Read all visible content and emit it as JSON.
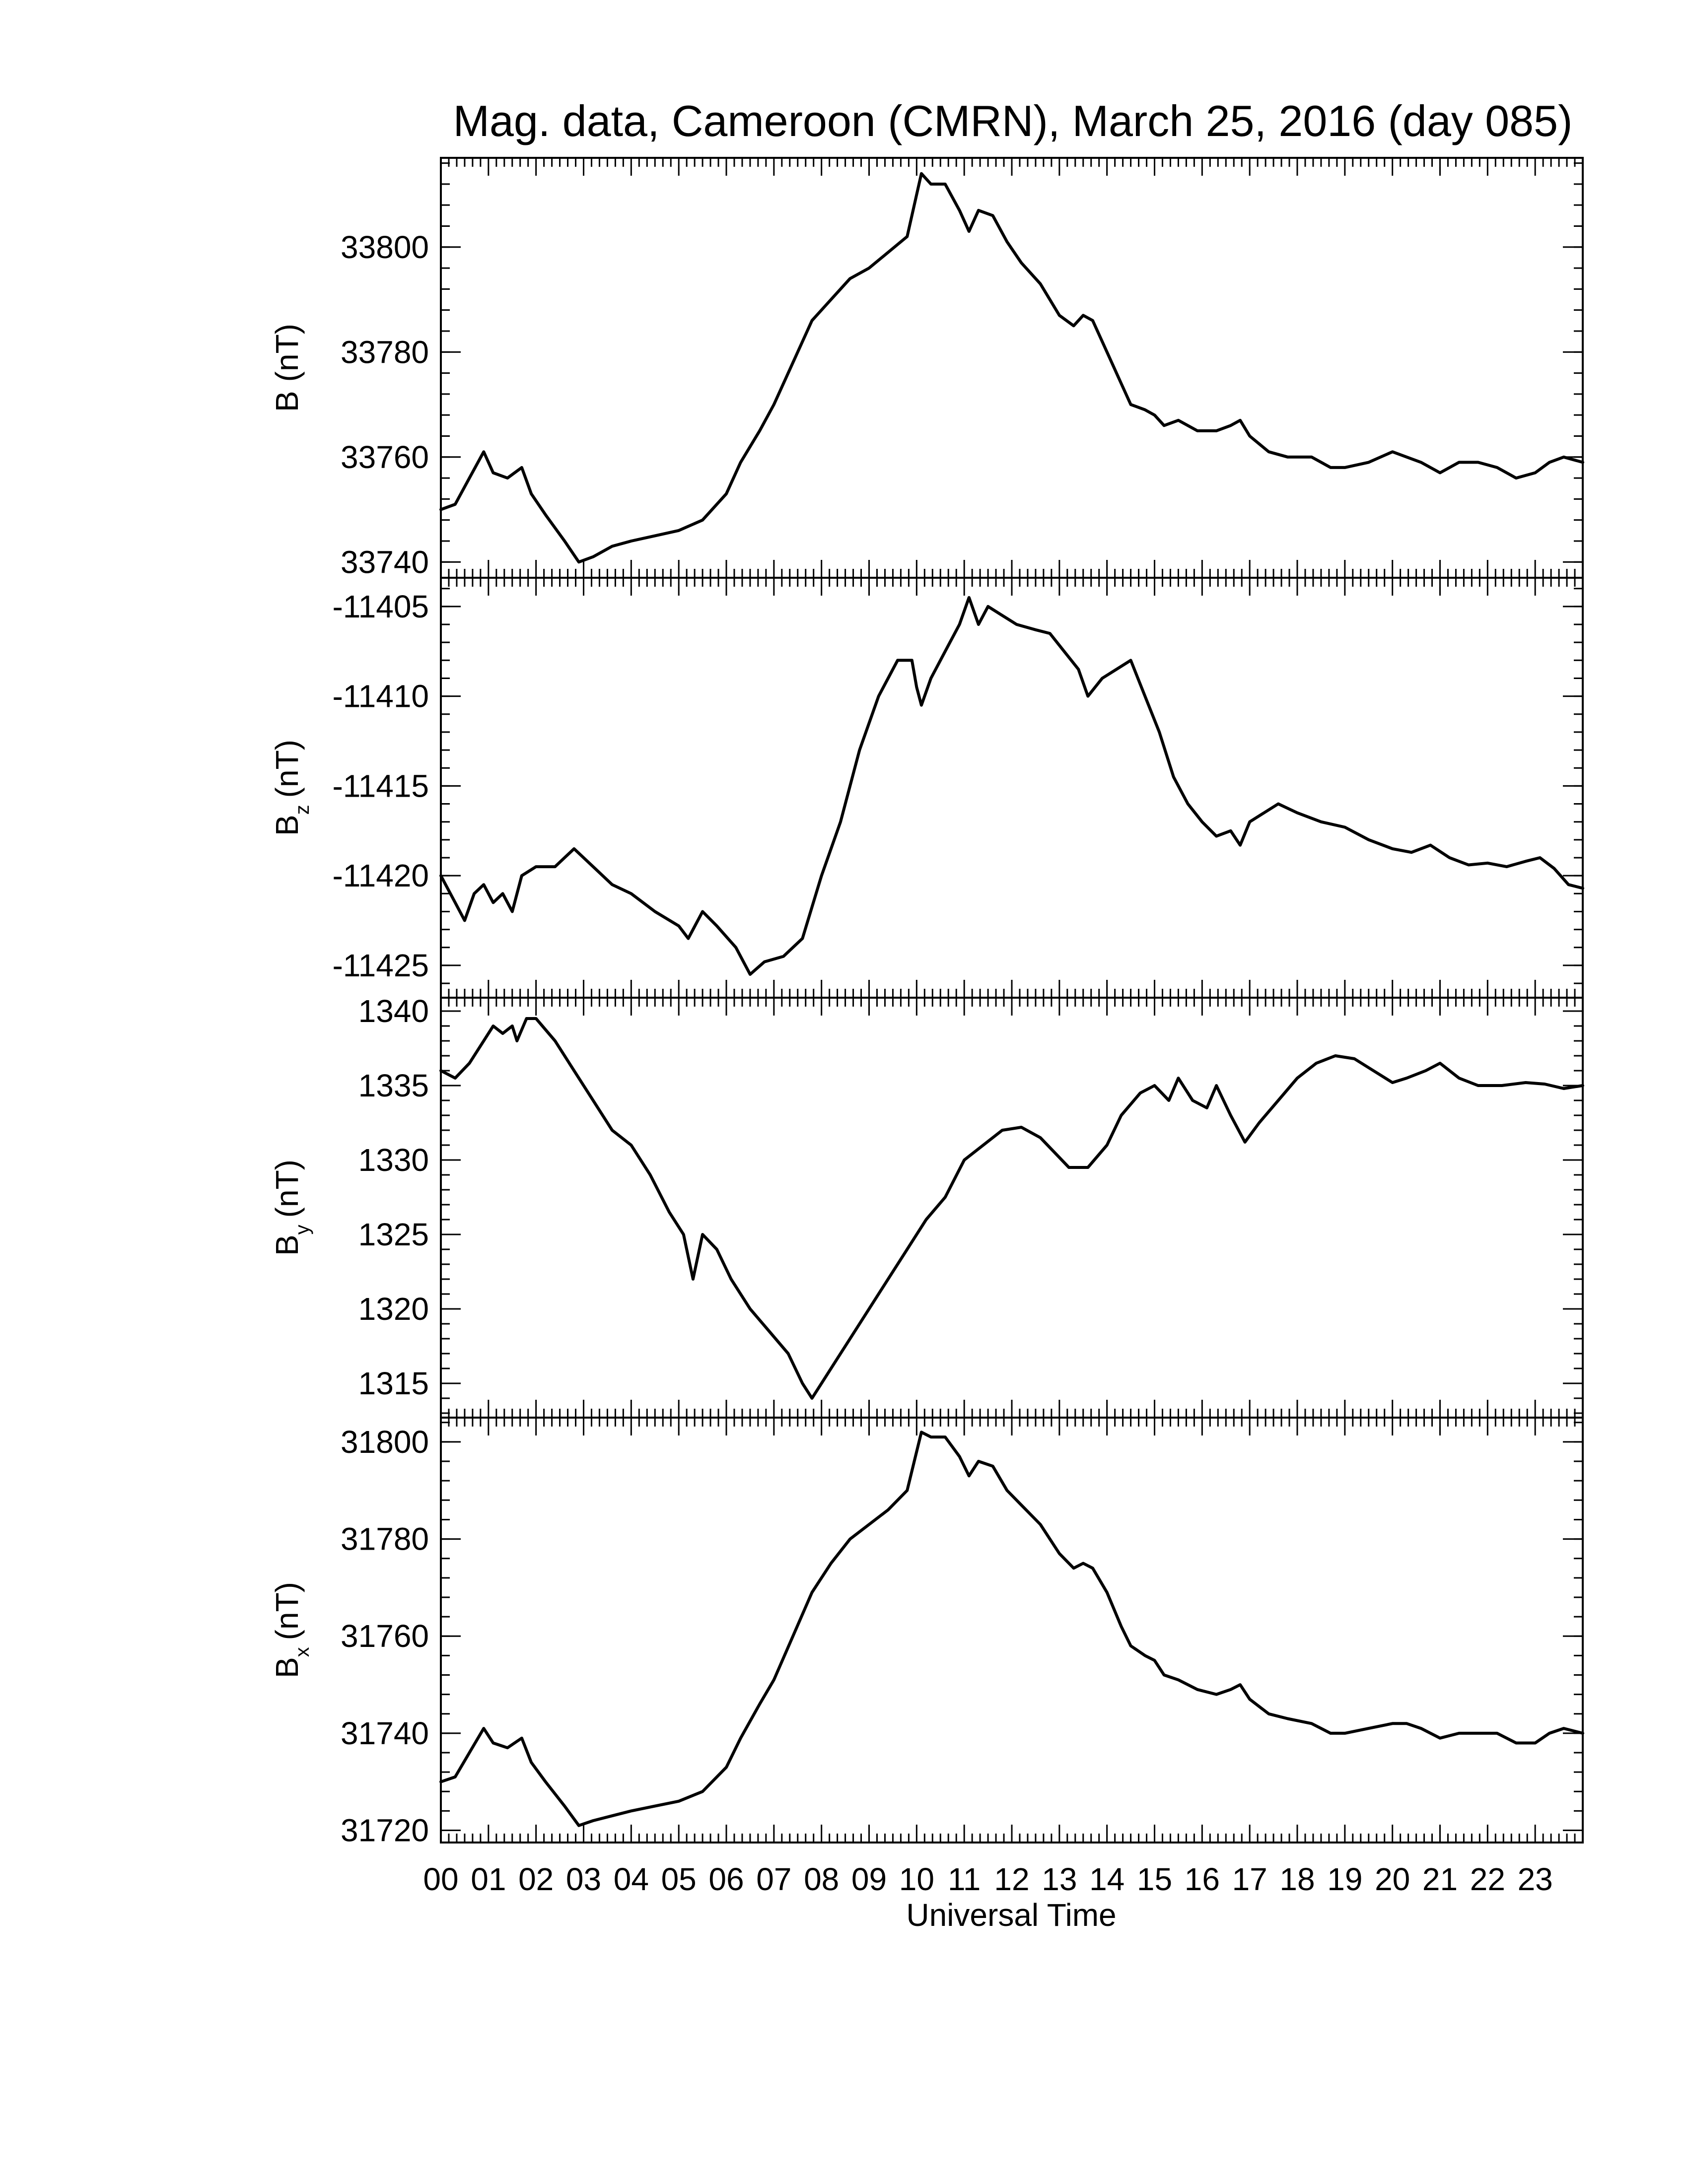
{
  "title": "Mag. data, Cameroon (CMRN), March 25, 2016 (day 085)",
  "chart_data": {
    "type": "line",
    "title": "Mag. data, Cameroon (CMRN), March 25, 2016 (day 085)",
    "xlabel": "Universal Time",
    "x_tick_labels": [
      "00",
      "01",
      "02",
      "03",
      "04",
      "05",
      "06",
      "07",
      "08",
      "09",
      "10",
      "11",
      "12",
      "13",
      "14",
      "15",
      "16",
      "17",
      "18",
      "19",
      "20",
      "21",
      "22",
      "23"
    ],
    "xlim": [
      0,
      24
    ],
    "panels": [
      {
        "ylabel": "B (nT)",
        "ylabel_main": "B",
        "ylabel_sub": "",
        "ylabel_unit": "(nT)",
        "ylim": [
          33737,
          33817
        ],
        "yticks": [
          33740,
          33760,
          33780,
          33800
        ],
        "points": [
          [
            0,
            33750
          ],
          [
            0.3,
            33751
          ],
          [
            0.6,
            33756
          ],
          [
            0.9,
            33761
          ],
          [
            1.1,
            33757
          ],
          [
            1.4,
            33756
          ],
          [
            1.7,
            33758
          ],
          [
            1.9,
            33753
          ],
          [
            2.2,
            33749
          ],
          [
            2.6,
            33744
          ],
          [
            2.9,
            33740
          ],
          [
            3.2,
            33741
          ],
          [
            3.6,
            33743
          ],
          [
            4.0,
            33744
          ],
          [
            4.5,
            33745
          ],
          [
            5.0,
            33746
          ],
          [
            5.5,
            33748
          ],
          [
            6.0,
            33753
          ],
          [
            6.3,
            33759
          ],
          [
            6.7,
            33765
          ],
          [
            7.0,
            33770
          ],
          [
            7.4,
            33778
          ],
          [
            7.8,
            33786
          ],
          [
            8.2,
            33790
          ],
          [
            8.6,
            33794
          ],
          [
            9.0,
            33796
          ],
          [
            9.4,
            33799
          ],
          [
            9.8,
            33802
          ],
          [
            10.0,
            33810
          ],
          [
            10.1,
            33814
          ],
          [
            10.3,
            33812
          ],
          [
            10.6,
            33812
          ],
          [
            10.9,
            33807
          ],
          [
            11.1,
            33803
          ],
          [
            11.3,
            33807
          ],
          [
            11.6,
            33806
          ],
          [
            11.9,
            33801
          ],
          [
            12.2,
            33797
          ],
          [
            12.6,
            33793
          ],
          [
            13.0,
            33787
          ],
          [
            13.3,
            33785
          ],
          [
            13.5,
            33787
          ],
          [
            13.7,
            33786
          ],
          [
            14.0,
            33780
          ],
          [
            14.3,
            33774
          ],
          [
            14.5,
            33770
          ],
          [
            14.8,
            33769
          ],
          [
            15.0,
            33768
          ],
          [
            15.2,
            33766
          ],
          [
            15.5,
            33767
          ],
          [
            15.9,
            33765
          ],
          [
            16.3,
            33765
          ],
          [
            16.6,
            33766
          ],
          [
            16.8,
            33767
          ],
          [
            17.0,
            33764
          ],
          [
            17.4,
            33761
          ],
          [
            17.8,
            33760
          ],
          [
            18.3,
            33760
          ],
          [
            18.7,
            33758
          ],
          [
            19.0,
            33758
          ],
          [
            19.5,
            33759
          ],
          [
            20.0,
            33761
          ],
          [
            20.3,
            33760
          ],
          [
            20.6,
            33759
          ],
          [
            21.0,
            33757
          ],
          [
            21.4,
            33759
          ],
          [
            21.8,
            33759
          ],
          [
            22.2,
            33758
          ],
          [
            22.6,
            33756
          ],
          [
            23.0,
            33757
          ],
          [
            23.3,
            33759
          ],
          [
            23.6,
            33760
          ],
          [
            24.0,
            33759
          ]
        ]
      },
      {
        "ylabel": "Bz (nT)",
        "ylabel_main": "B",
        "ylabel_sub": "z",
        "ylabel_unit": "(nT)",
        "ylim": [
          -11426.8,
          -11403.4
        ],
        "yticks": [
          -11425,
          -11420,
          -11415,
          -11410,
          -11405
        ],
        "points": [
          [
            0,
            -11420
          ],
          [
            0.3,
            -11421.5
          ],
          [
            0.5,
            -11422.5
          ],
          [
            0.7,
            -11421
          ],
          [
            0.9,
            -11420.5
          ],
          [
            1.1,
            -11421.5
          ],
          [
            1.3,
            -11421
          ],
          [
            1.5,
            -11422
          ],
          [
            1.7,
            -11420
          ],
          [
            2.0,
            -11419.5
          ],
          [
            2.4,
            -11419.5
          ],
          [
            2.8,
            -11418.5
          ],
          [
            3.2,
            -11419.5
          ],
          [
            3.6,
            -11420.5
          ],
          [
            4.0,
            -11421
          ],
          [
            4.5,
            -11422
          ],
          [
            5.0,
            -11422.8
          ],
          [
            5.2,
            -11423.5
          ],
          [
            5.5,
            -11422
          ],
          [
            5.8,
            -11422.8
          ],
          [
            6.2,
            -11424
          ],
          [
            6.5,
            -11425.5
          ],
          [
            6.8,
            -11424.8
          ],
          [
            7.2,
            -11424.5
          ],
          [
            7.6,
            -11423.5
          ],
          [
            8.0,
            -11420
          ],
          [
            8.4,
            -11417
          ],
          [
            8.8,
            -11413
          ],
          [
            9.2,
            -11410
          ],
          [
            9.6,
            -11408
          ],
          [
            9.9,
            -11408
          ],
          [
            10.0,
            -11409.5
          ],
          [
            10.1,
            -11410.5
          ],
          [
            10.3,
            -11409
          ],
          [
            10.6,
            -11407.5
          ],
          [
            10.9,
            -11406
          ],
          [
            11.1,
            -11404.5
          ],
          [
            11.3,
            -11406
          ],
          [
            11.5,
            -11405
          ],
          [
            11.8,
            -11405.5
          ],
          [
            12.1,
            -11406
          ],
          [
            12.5,
            -11406.3
          ],
          [
            12.8,
            -11406.5
          ],
          [
            13.1,
            -11407.5
          ],
          [
            13.4,
            -11408.5
          ],
          [
            13.6,
            -11410
          ],
          [
            13.9,
            -11409
          ],
          [
            14.2,
            -11408.5
          ],
          [
            14.5,
            -11408
          ],
          [
            14.8,
            -11410
          ],
          [
            15.1,
            -11412
          ],
          [
            15.4,
            -11414.5
          ],
          [
            15.7,
            -11416
          ],
          [
            16.0,
            -11417
          ],
          [
            16.3,
            -11417.8
          ],
          [
            16.6,
            -11417.5
          ],
          [
            16.8,
            -11418.3
          ],
          [
            17.0,
            -11417
          ],
          [
            17.3,
            -11416.5
          ],
          [
            17.6,
            -11416
          ],
          [
            18.0,
            -11416.5
          ],
          [
            18.5,
            -11417
          ],
          [
            19.0,
            -11417.3
          ],
          [
            19.5,
            -11418
          ],
          [
            20.0,
            -11418.5
          ],
          [
            20.4,
            -11418.7
          ],
          [
            20.8,
            -11418.3
          ],
          [
            21.2,
            -11419
          ],
          [
            21.6,
            -11419.4
          ],
          [
            22.0,
            -11419.3
          ],
          [
            22.4,
            -11419.5
          ],
          [
            22.8,
            -11419.2
          ],
          [
            23.1,
            -11419
          ],
          [
            23.4,
            -11419.6
          ],
          [
            23.7,
            -11420.5
          ],
          [
            24.0,
            -11420.7
          ]
        ]
      },
      {
        "ylabel": "By (nT)",
        "ylabel_main": "B",
        "ylabel_sub": "y",
        "ylabel_unit": "(nT)",
        "ylim": [
          1312.7,
          1340.9
        ],
        "yticks": [
          1315,
          1320,
          1325,
          1330,
          1335,
          1340
        ],
        "points": [
          [
            0,
            1336
          ],
          [
            0.3,
            1335.5
          ],
          [
            0.6,
            1336.5
          ],
          [
            0.9,
            1338
          ],
          [
            1.1,
            1339
          ],
          [
            1.3,
            1338.5
          ],
          [
            1.5,
            1339
          ],
          [
            1.6,
            1338
          ],
          [
            1.8,
            1339.5
          ],
          [
            2.0,
            1339.5
          ],
          [
            2.4,
            1338
          ],
          [
            2.8,
            1336
          ],
          [
            3.2,
            1334
          ],
          [
            3.6,
            1332
          ],
          [
            4.0,
            1331
          ],
          [
            4.4,
            1329
          ],
          [
            4.8,
            1326.5
          ],
          [
            5.1,
            1325
          ],
          [
            5.3,
            1322
          ],
          [
            5.5,
            1325
          ],
          [
            5.8,
            1324
          ],
          [
            6.1,
            1322
          ],
          [
            6.5,
            1320
          ],
          [
            6.9,
            1318.5
          ],
          [
            7.3,
            1317
          ],
          [
            7.6,
            1315
          ],
          [
            7.8,
            1314
          ],
          [
            8.0,
            1315
          ],
          [
            8.3,
            1316.5
          ],
          [
            8.6,
            1318
          ],
          [
            9.0,
            1320
          ],
          [
            9.4,
            1322
          ],
          [
            9.8,
            1324
          ],
          [
            10.2,
            1326
          ],
          [
            10.6,
            1327.5
          ],
          [
            11.0,
            1330
          ],
          [
            11.4,
            1331
          ],
          [
            11.8,
            1332
          ],
          [
            12.2,
            1332.2
          ],
          [
            12.6,
            1331.5
          ],
          [
            12.9,
            1330.5
          ],
          [
            13.2,
            1329.5
          ],
          [
            13.6,
            1329.5
          ],
          [
            14.0,
            1331
          ],
          [
            14.3,
            1333
          ],
          [
            14.7,
            1334.5
          ],
          [
            15.0,
            1335
          ],
          [
            15.3,
            1334
          ],
          [
            15.5,
            1335.5
          ],
          [
            15.8,
            1334
          ],
          [
            16.1,
            1333.5
          ],
          [
            16.3,
            1335
          ],
          [
            16.6,
            1333
          ],
          [
            16.9,
            1331.2
          ],
          [
            17.2,
            1332.5
          ],
          [
            17.6,
            1334
          ],
          [
            18.0,
            1335.5
          ],
          [
            18.4,
            1336.5
          ],
          [
            18.8,
            1337
          ],
          [
            19.2,
            1336.8
          ],
          [
            19.6,
            1336
          ],
          [
            20.0,
            1335.2
          ],
          [
            20.3,
            1335.5
          ],
          [
            20.7,
            1336
          ],
          [
            21.0,
            1336.5
          ],
          [
            21.4,
            1335.5
          ],
          [
            21.8,
            1335
          ],
          [
            22.3,
            1335
          ],
          [
            22.8,
            1335.2
          ],
          [
            23.2,
            1335.1
          ],
          [
            23.6,
            1334.8
          ],
          [
            24.0,
            1335
          ]
        ]
      },
      {
        "ylabel": "Bx (nT)",
        "ylabel_main": "B",
        "ylabel_sub": "x",
        "ylabel_unit": "(nT)",
        "ylim": [
          31717.5,
          31805
        ],
        "yticks": [
          31720,
          31740,
          31760,
          31780,
          31800
        ],
        "points": [
          [
            0,
            31730
          ],
          [
            0.3,
            31731
          ],
          [
            0.6,
            31736
          ],
          [
            0.9,
            31741
          ],
          [
            1.1,
            31738
          ],
          [
            1.4,
            31737
          ],
          [
            1.7,
            31739
          ],
          [
            1.9,
            31734
          ],
          [
            2.2,
            31730
          ],
          [
            2.6,
            31725
          ],
          [
            2.9,
            31721
          ],
          [
            3.2,
            31722
          ],
          [
            3.6,
            31723
          ],
          [
            4.0,
            31724
          ],
          [
            4.5,
            31725
          ],
          [
            5.0,
            31726
          ],
          [
            5.5,
            31728
          ],
          [
            6.0,
            31733
          ],
          [
            6.3,
            31739
          ],
          [
            6.7,
            31746
          ],
          [
            7.0,
            31751
          ],
          [
            7.4,
            31760
          ],
          [
            7.8,
            31769
          ],
          [
            8.2,
            31775
          ],
          [
            8.6,
            31780
          ],
          [
            9.0,
            31783
          ],
          [
            9.4,
            31786
          ],
          [
            9.8,
            31790
          ],
          [
            10.0,
            31798
          ],
          [
            10.1,
            31802
          ],
          [
            10.3,
            31801
          ],
          [
            10.6,
            31801
          ],
          [
            10.9,
            31797
          ],
          [
            11.1,
            31793
          ],
          [
            11.3,
            31796
          ],
          [
            11.6,
            31795
          ],
          [
            11.9,
            31790
          ],
          [
            12.2,
            31787
          ],
          [
            12.6,
            31783
          ],
          [
            13.0,
            31777
          ],
          [
            13.3,
            31774
          ],
          [
            13.5,
            31775
          ],
          [
            13.7,
            31774
          ],
          [
            14.0,
            31769
          ],
          [
            14.3,
            31762
          ],
          [
            14.5,
            31758
          ],
          [
            14.8,
            31756
          ],
          [
            15.0,
            31755
          ],
          [
            15.2,
            31752
          ],
          [
            15.5,
            31751
          ],
          [
            15.9,
            31749
          ],
          [
            16.3,
            31748
          ],
          [
            16.6,
            31749
          ],
          [
            16.8,
            31750
          ],
          [
            17.0,
            31747
          ],
          [
            17.4,
            31744
          ],
          [
            17.8,
            31743
          ],
          [
            18.3,
            31742
          ],
          [
            18.7,
            31740
          ],
          [
            19.0,
            31740
          ],
          [
            19.5,
            31741
          ],
          [
            20.0,
            31742
          ],
          [
            20.3,
            31742
          ],
          [
            20.6,
            31741
          ],
          [
            21.0,
            31739
          ],
          [
            21.4,
            31740
          ],
          [
            21.8,
            31740
          ],
          [
            22.2,
            31740
          ],
          [
            22.6,
            31738
          ],
          [
            23.0,
            31738
          ],
          [
            23.3,
            31740
          ],
          [
            23.6,
            31741
          ],
          [
            24.0,
            31740
          ]
        ]
      }
    ]
  }
}
